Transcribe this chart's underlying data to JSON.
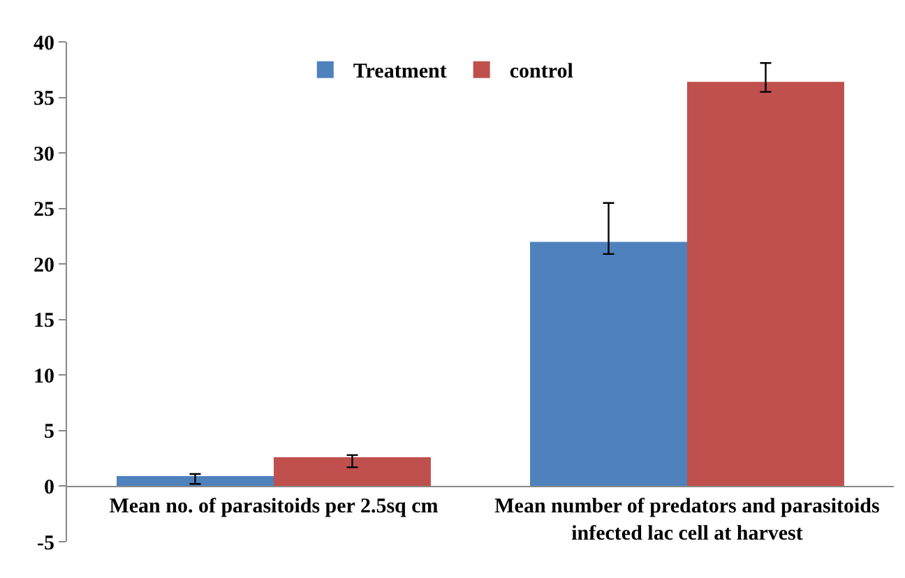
{
  "chart_data": {
    "type": "bar",
    "categories": [
      "Mean no. of parasitoids per 2.5sq cm",
      "Mean number of predators and parasitoids infected lac cell at harvest"
    ],
    "series": [
      {
        "name": "Treatment",
        "color": "#4f81bd",
        "values": [
          0.9,
          22.0
        ],
        "errors": [
          [
            0.2,
            1.1
          ],
          [
            20.9,
            25.5
          ]
        ]
      },
      {
        "name": "control",
        "color": "#c0504d",
        "values": [
          2.6,
          36.4
        ],
        "errors": [
          [
            1.7,
            2.8
          ],
          [
            35.5,
            38.1
          ]
        ]
      }
    ],
    "ylim": [
      -5,
      40
    ],
    "yticks": [
      -5,
      0,
      5,
      10,
      15,
      20,
      25,
      30,
      35,
      40
    ],
    "grid": false,
    "legend": "top"
  }
}
